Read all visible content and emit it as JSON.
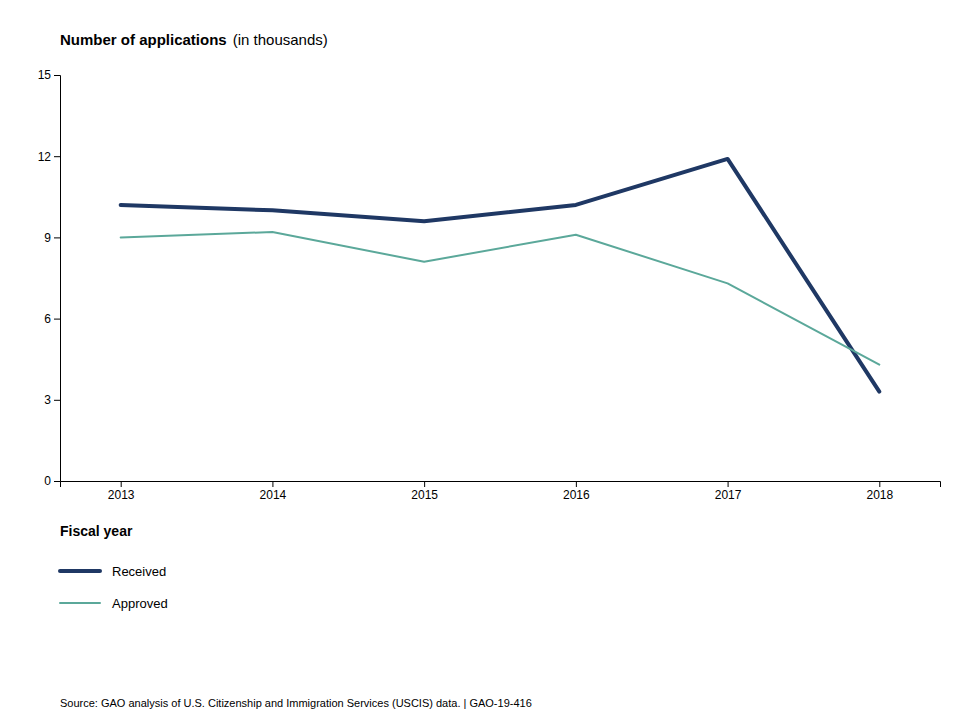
{
  "chart_data": {
    "type": "line",
    "title": "Number of applications",
    "subtitle": "(in thousands)",
    "x_label": "Fiscal year",
    "x": [
      2013,
      2014,
      2015,
      2016,
      2017,
      2018
    ],
    "series": [
      {
        "name": "Received",
        "color": "#1f3864",
        "values": [
          10.2,
          10.0,
          9.6,
          10.2,
          11.9,
          3.3
        ]
      },
      {
        "name": "Approved",
        "color": "#5ba89a",
        "values": [
          9.0,
          9.2,
          8.1,
          9.1,
          7.3,
          4.3
        ]
      }
    ],
    "xlim": [
      2012.6,
      2018.4
    ],
    "xticks": [
      2013,
      2014,
      2015,
      2016,
      2017,
      2018
    ],
    "ylim": [
      0,
      15
    ],
    "yticks": [
      0,
      3,
      6,
      9,
      12,
      15
    ],
    "grid": false,
    "legend": "bottom",
    "annotations": [
      "Source: GAO analysis of U.S. Citizenship and Immigration Services (USCIS) data.  |  GAO-19-416"
    ]
  }
}
